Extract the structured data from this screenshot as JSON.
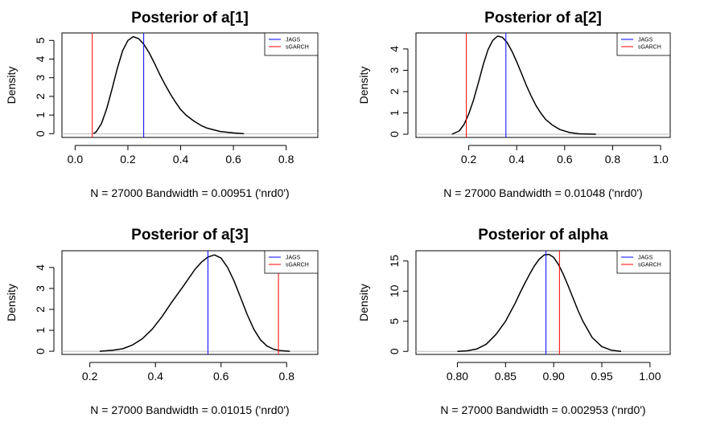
{
  "chart_data": [
    {
      "type": "line",
      "title": "Posterior of a[1]",
      "xlabel": "N = 27000   Bandwidth = 0.00951 ('nrd0')",
      "ylabel": "Density",
      "xlim": [
        -0.05,
        0.92
      ],
      "ylim": [
        -0.2,
        5.4
      ],
      "xticks": [
        0.0,
        0.2,
        0.4,
        0.6,
        0.8
      ],
      "xtick_labels": [
        "0.0",
        "0.2",
        "0.4",
        "0.6",
        "0.8"
      ],
      "yticks": [
        0,
        1,
        2,
        3,
        4,
        5
      ],
      "ytick_labels": [
        "0",
        "1",
        "2",
        "3",
        "4",
        "5"
      ],
      "density": {
        "x": [
          0.07,
          0.08,
          0.1,
          0.12,
          0.14,
          0.16,
          0.18,
          0.2,
          0.22,
          0.24,
          0.26,
          0.28,
          0.3,
          0.32,
          0.34,
          0.36,
          0.38,
          0.4,
          0.42,
          0.45,
          0.48,
          0.5,
          0.55,
          0.6,
          0.64
        ],
        "y": [
          0.0,
          0.1,
          0.55,
          1.35,
          2.4,
          3.5,
          4.45,
          5.0,
          5.2,
          5.1,
          4.8,
          4.35,
          3.8,
          3.2,
          2.65,
          2.15,
          1.7,
          1.3,
          1.0,
          0.68,
          0.42,
          0.3,
          0.12,
          0.04,
          0.0
        ]
      },
      "vlines": [
        {
          "name": "JAGS",
          "x": 0.26,
          "color": "#0000ff"
        },
        {
          "name": "sGARCH",
          "x": 0.065,
          "color": "#ff0000"
        }
      ]
    },
    {
      "type": "line",
      "title": "Posterior of a[2]",
      "xlabel": "N = 27000   Bandwidth = 0.01048 ('nrd0')",
      "ylabel": "Density",
      "xlim": [
        -0.02,
        1.04
      ],
      "ylim": [
        -0.15,
        4.75
      ],
      "xticks": [
        0.2,
        0.4,
        0.6,
        0.8,
        1.0
      ],
      "xtick_labels": [
        "0.2",
        "0.4",
        "0.6",
        "0.8",
        "1.0"
      ],
      "yticks": [
        0,
        1,
        2,
        3,
        4
      ],
      "ytick_labels": [
        "0",
        "1",
        "2",
        "3",
        "4"
      ],
      "density": {
        "x": [
          0.13,
          0.16,
          0.18,
          0.2,
          0.22,
          0.24,
          0.26,
          0.28,
          0.3,
          0.32,
          0.34,
          0.36,
          0.38,
          0.4,
          0.42,
          0.44,
          0.46,
          0.48,
          0.5,
          0.52,
          0.55,
          0.58,
          0.62,
          0.66,
          0.73
        ],
        "y": [
          0.0,
          0.15,
          0.45,
          0.95,
          1.6,
          2.4,
          3.25,
          3.95,
          4.4,
          4.6,
          4.55,
          4.3,
          3.9,
          3.4,
          2.85,
          2.3,
          1.8,
          1.35,
          1.0,
          0.7,
          0.42,
          0.22,
          0.08,
          0.02,
          0.0
        ]
      },
      "vlines": [
        {
          "name": "JAGS",
          "x": 0.355,
          "color": "#0000ff"
        },
        {
          "name": "sGARCH",
          "x": 0.19,
          "color": "#ff0000"
        }
      ]
    },
    {
      "type": "line",
      "title": "Posterior of a[3]",
      "xlabel": "N = 27000   Bandwidth = 0.01015 ('nrd0')",
      "ylabel": "Density",
      "xlim": [
        0.115,
        0.895
      ],
      "ylim": [
        -0.15,
        4.8
      ],
      "xticks": [
        0.2,
        0.4,
        0.6,
        0.8
      ],
      "xtick_labels": [
        "0.2",
        "0.4",
        "0.6",
        "0.8"
      ],
      "yticks": [
        0,
        1,
        2,
        3,
        4
      ],
      "ytick_labels": [
        "0",
        "1",
        "2",
        "3",
        "4"
      ],
      "density": {
        "x": [
          0.23,
          0.27,
          0.3,
          0.33,
          0.36,
          0.39,
          0.42,
          0.45,
          0.48,
          0.5,
          0.52,
          0.54,
          0.56,
          0.58,
          0.6,
          0.62,
          0.64,
          0.66,
          0.68,
          0.7,
          0.72,
          0.74,
          0.76,
          0.78,
          0.81
        ],
        "y": [
          0.0,
          0.05,
          0.12,
          0.3,
          0.6,
          1.05,
          1.65,
          2.35,
          3.0,
          3.45,
          3.9,
          4.25,
          4.5,
          4.6,
          4.45,
          4.0,
          3.35,
          2.55,
          1.75,
          1.05,
          0.55,
          0.25,
          0.1,
          0.03,
          0.0
        ]
      },
      "vlines": [
        {
          "name": "JAGS",
          "x": 0.56,
          "color": "#0000ff"
        },
        {
          "name": "sGARCH",
          "x": 0.775,
          "color": "#ff0000"
        }
      ]
    },
    {
      "type": "line",
      "title": "Posterior of alpha",
      "xlabel": "N = 27000   Bandwidth = 0.002953 ('nrd0')",
      "ylabel": "Density",
      "xlim": [
        0.757,
        1.021
      ],
      "ylim": [
        -0.5,
        16.7
      ],
      "xticks": [
        0.8,
        0.85,
        0.9,
        0.95,
        1.0
      ],
      "xtick_labels": [
        "0.80",
        "0.85",
        "0.90",
        "0.95",
        "1.00"
      ],
      "yticks": [
        0,
        5,
        10,
        15
      ],
      "ytick_labels": [
        "0",
        "5",
        "10",
        "15"
      ],
      "density": {
        "x": [
          0.8,
          0.81,
          0.82,
          0.83,
          0.84,
          0.85,
          0.86,
          0.865,
          0.87,
          0.875,
          0.88,
          0.885,
          0.89,
          0.895,
          0.9,
          0.905,
          0.91,
          0.915,
          0.92,
          0.925,
          0.93,
          0.94,
          0.95,
          0.96,
          0.97
        ],
        "y": [
          0.0,
          0.1,
          0.4,
          1.2,
          2.8,
          5.0,
          8.0,
          9.7,
          11.3,
          12.8,
          14.2,
          15.3,
          16.0,
          16.1,
          15.6,
          14.4,
          12.8,
          10.9,
          8.9,
          6.9,
          5.1,
          2.3,
          0.8,
          0.2,
          0.0
        ]
      },
      "vlines": [
        {
          "name": "JAGS",
          "x": 0.892,
          "color": "#0000ff"
        },
        {
          "name": "sGARCH",
          "x": 0.906,
          "color": "#ff0000"
        }
      ]
    }
  ],
  "colors": {
    "density_line": "#000000",
    "baseline": "#bebebe",
    "jags": "#0000ff",
    "sgarch": "#ff0000"
  }
}
